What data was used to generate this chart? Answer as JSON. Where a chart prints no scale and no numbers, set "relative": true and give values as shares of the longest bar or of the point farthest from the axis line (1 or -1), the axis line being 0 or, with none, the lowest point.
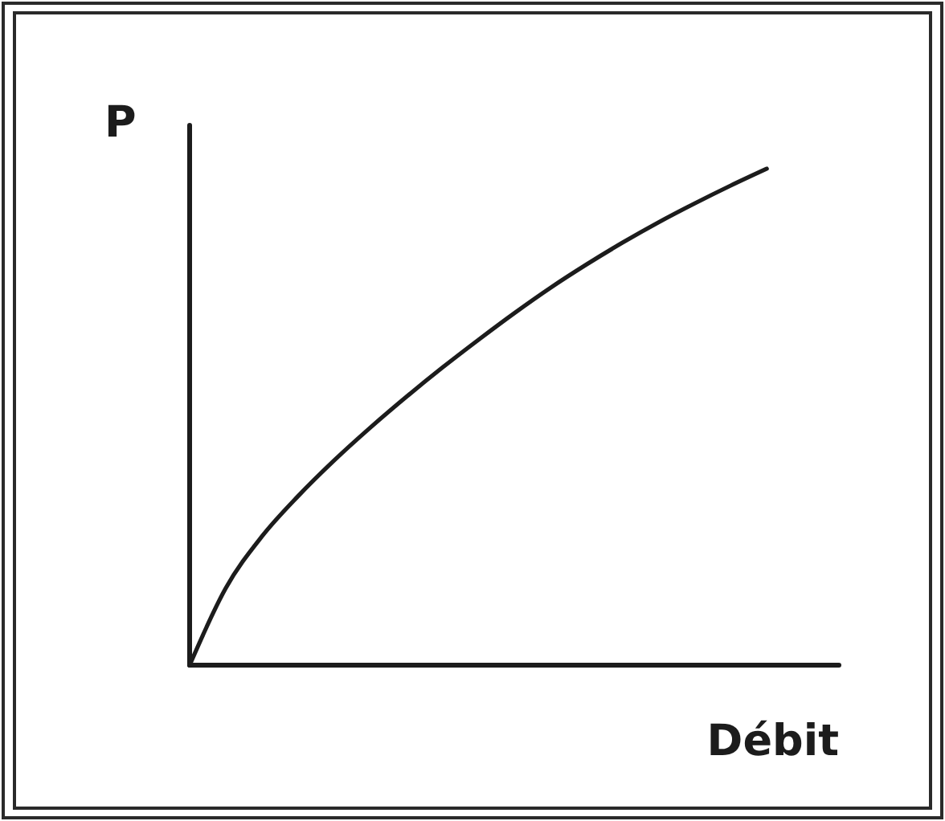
{
  "chart_data": {
    "type": "line",
    "relative": true,
    "xlabel": "Débit",
    "ylabel": "P",
    "categories": [
      null,
      null,
      null,
      null,
      null,
      null,
      null,
      null,
      null,
      null,
      null,
      null,
      null,
      null,
      null,
      null,
      null,
      null,
      null
    ],
    "series": [
      {
        "color": "#1c1c1c",
        "values": [
          0,
          0.155,
          0.259,
          0.34,
          0.412,
          0.478,
          0.54,
          0.599,
          0.655,
          0.709,
          0.76,
          0.807,
          0.851,
          0.892,
          0.93,
          0.966,
          1,
          null,
          null
        ]
      }
    ],
    "line_style": "solid"
  }
}
